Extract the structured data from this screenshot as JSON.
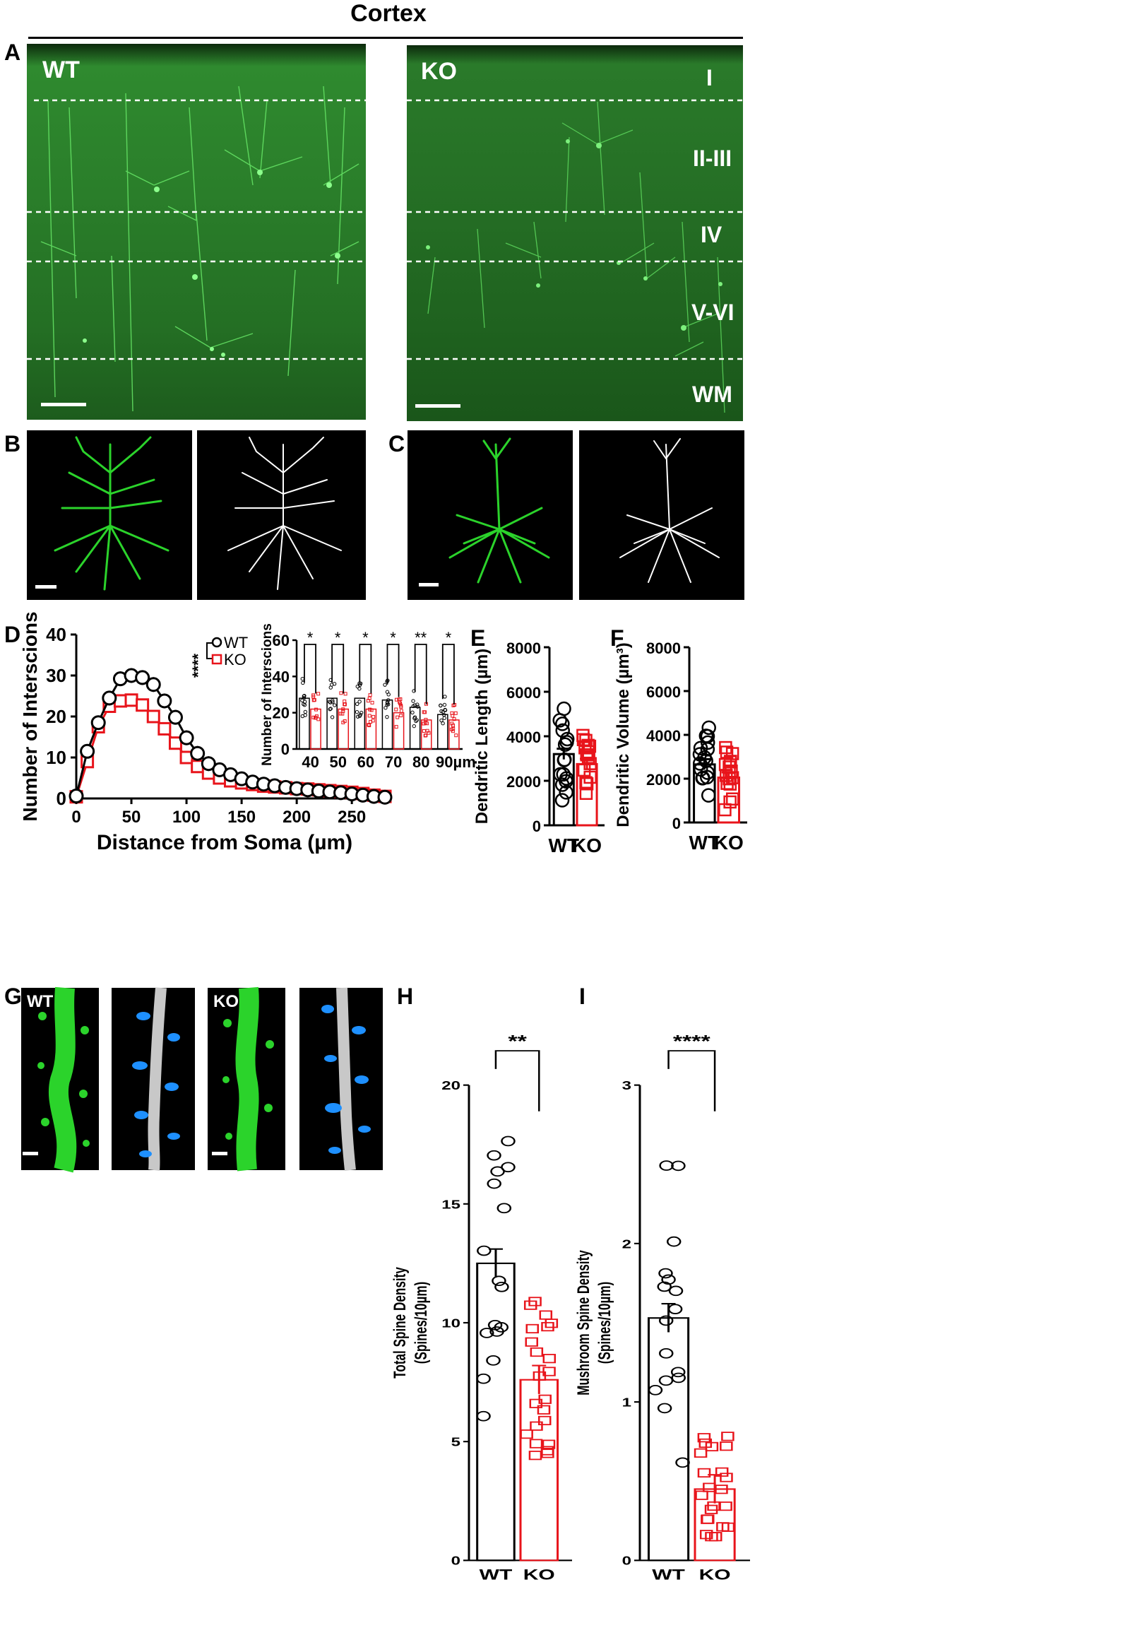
{
  "figure_title": "Cortex",
  "panels": {
    "A": "A",
    "B": "B",
    "C": "C",
    "D": "D",
    "E": "E",
    "F": "F",
    "G": "G",
    "H": "H",
    "I": "I"
  },
  "micrographs": {
    "wt_label": "WT",
    "ko_label": "KO",
    "layers": [
      "I",
      "II-III",
      "IV",
      "V-VI",
      "WM"
    ],
    "spine_wt_label": "WT",
    "spine_ko_label": "KO"
  },
  "colors": {
    "wt": "#000000",
    "ko": "#e8141b",
    "neuron_green": "#2bd32b",
    "tissue_green": "#1f7a1f",
    "spine_blue": "#1e90ff"
  },
  "chart_data": [
    {
      "id": "D-main",
      "type": "line",
      "xlabel": "Distance from Soma (µm)",
      "ylabel": "Number of Interscions",
      "xlim": [
        0,
        280
      ],
      "ylim": [
        0,
        40
      ],
      "xticks": [
        0,
        50,
        100,
        150,
        200,
        250
      ],
      "yticks": [
        0,
        10,
        20,
        30,
        40
      ],
      "significance": "****",
      "x": [
        0,
        10,
        20,
        30,
        40,
        50,
        60,
        70,
        80,
        90,
        100,
        110,
        120,
        130,
        140,
        150,
        160,
        170,
        180,
        190,
        200,
        210,
        220,
        230,
        240,
        250,
        260,
        270,
        280
      ],
      "series": [
        {
          "name": "WT",
          "values": [
            0.6,
            11.5,
            18.5,
            24.5,
            29.2,
            30.0,
            29.5,
            27.8,
            23.8,
            19.8,
            14.8,
            11.0,
            8.5,
            7.0,
            5.8,
            4.8,
            4.0,
            3.5,
            3.1,
            2.7,
            2.4,
            2.1,
            1.8,
            1.6,
            1.4,
            1.1,
            0.8,
            0.5,
            0.3
          ]
        },
        {
          "name": "KO",
          "values": [
            0.4,
            9.0,
            17.5,
            22.5,
            23.8,
            24.0,
            22.8,
            20.0,
            17.0,
            13.5,
            10.0,
            7.8,
            6.2,
            5.0,
            4.3,
            3.8,
            3.4,
            3.0,
            2.8,
            2.6,
            2.4,
            2.3,
            2.1,
            1.9,
            1.7,
            1.5,
            1.2,
            0.8,
            0.5
          ]
        }
      ]
    },
    {
      "id": "D-inset",
      "type": "bar",
      "ylabel": "Number of Interscions",
      "categories": [
        "40",
        "50",
        "60",
        "70",
        "80",
        "90µm"
      ],
      "ylim": [
        0,
        60
      ],
      "yticks": [
        0,
        20,
        40,
        60
      ],
      "significance": [
        "*",
        "*",
        "*",
        "*",
        "**",
        "*"
      ],
      "series": [
        {
          "name": "WT",
          "values": [
            28,
            28,
            28,
            27,
            23,
            19
          ]
        },
        {
          "name": "KO",
          "values": [
            22,
            22,
            22,
            20,
            16,
            16
          ]
        }
      ]
    },
    {
      "id": "E",
      "type": "bar",
      "ylabel": "Dendritic Length (µm)",
      "categories": [
        "WT",
        "KO"
      ],
      "values": [
        3200,
        2750
      ],
      "ylim": [
        0,
        8000
      ],
      "yticks": [
        0,
        2000,
        4000,
        6000,
        8000
      ]
    },
    {
      "id": "F",
      "type": "bar",
      "ylabel": "Dendritic Volume (µm³)",
      "categories": [
        "WT",
        "KO"
      ],
      "values": [
        2650,
        2050
      ],
      "ylim": [
        0,
        8000
      ],
      "yticks": [
        0,
        2000,
        4000,
        6000,
        8000
      ]
    },
    {
      "id": "H",
      "type": "bar",
      "ylabel": "Total Spine Density",
      "ylabel2": "(Spines/10µm)",
      "categories": [
        "WT",
        "KO"
      ],
      "values": [
        12.5,
        7.6
      ],
      "ylim": [
        0,
        20
      ],
      "yticks": [
        0,
        5,
        10,
        15,
        20
      ],
      "significance": "**"
    },
    {
      "id": "I",
      "type": "bar",
      "ylabel": "Mushroom Spine Density",
      "ylabel2": "(Spines/10µm)",
      "categories": [
        "WT",
        "KO"
      ],
      "values": [
        1.53,
        0.45
      ],
      "ylim": [
        0,
        3
      ],
      "yticks": [
        0,
        1,
        2,
        3
      ],
      "significance": "****"
    }
  ]
}
